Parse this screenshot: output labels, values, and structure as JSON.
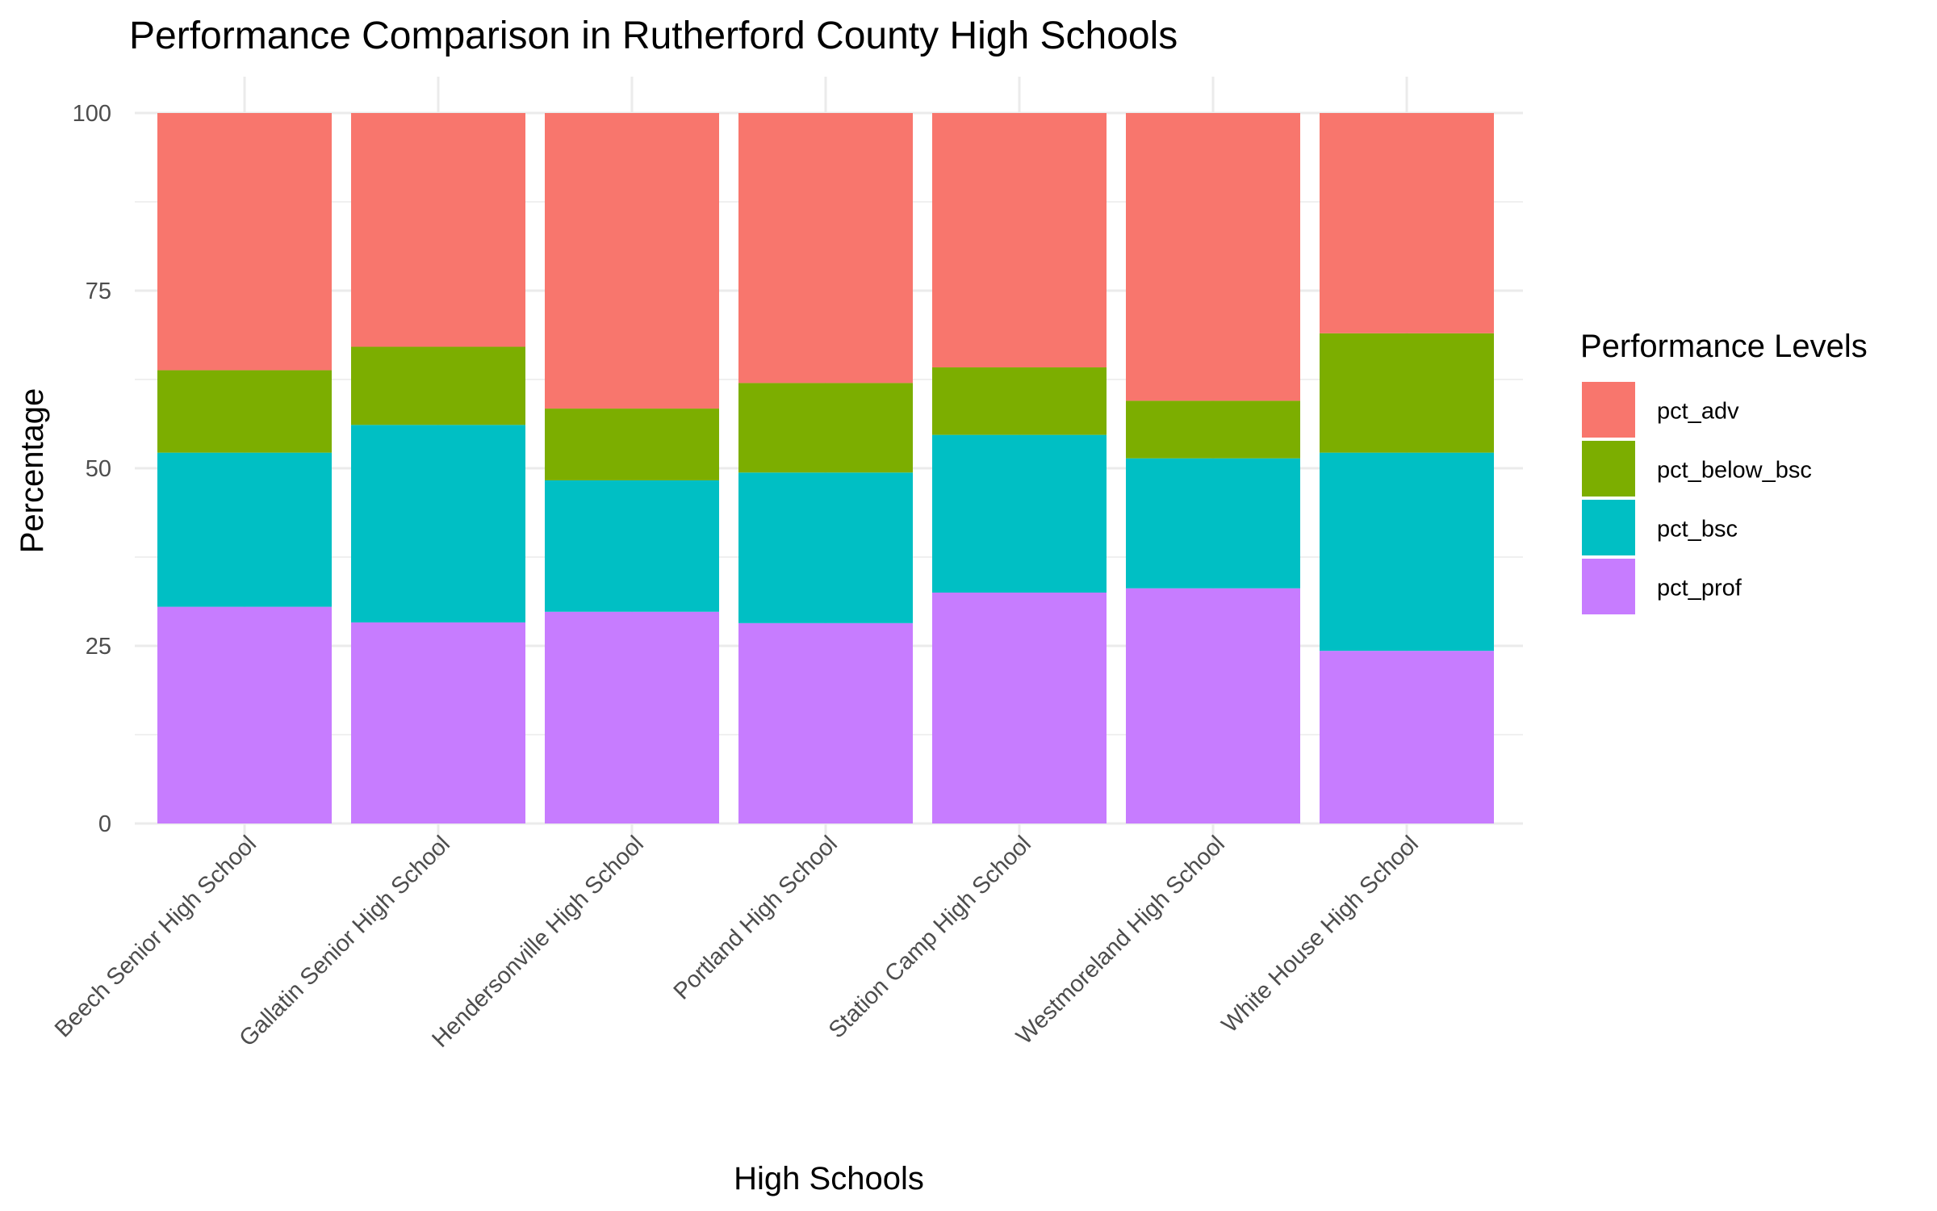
{
  "chart_data": {
    "type": "bar",
    "stacked": true,
    "title": "Performance Comparison in Rutherford County High Schools",
    "xlabel": "High Schools",
    "ylabel": "Percentage",
    "ylim": [
      0,
      100
    ],
    "yticks": [
      "0",
      "25",
      "50",
      "75",
      "100"
    ],
    "grid": true,
    "legend": {
      "title": "Performance Levels",
      "position": "right"
    },
    "categories": [
      "Beech Senior High School",
      "Gallatin Senior High School",
      "Hendersonville High School",
      "Portland High School",
      "Station Camp High School",
      "Westmoreland High School",
      "White House High School"
    ],
    "series": [
      {
        "name": "pct_adv",
        "color": "#F8766D",
        "values": [
          36.2,
          32.9,
          41.6,
          38.0,
          35.8,
          40.5,
          31.0
        ]
      },
      {
        "name": "pct_below_bsc",
        "color": "#7CAE00",
        "values": [
          11.6,
          11.0,
          10.1,
          12.6,
          9.5,
          8.1,
          16.8
        ]
      },
      {
        "name": "pct_bsc",
        "color": "#00BFC4",
        "values": [
          21.7,
          27.8,
          18.5,
          21.2,
          22.2,
          18.3,
          27.9
        ]
      },
      {
        "name": "pct_prof",
        "color": "#C77CFF",
        "values": [
          30.5,
          28.3,
          29.8,
          28.2,
          32.5,
          33.1,
          24.3
        ]
      }
    ]
  }
}
